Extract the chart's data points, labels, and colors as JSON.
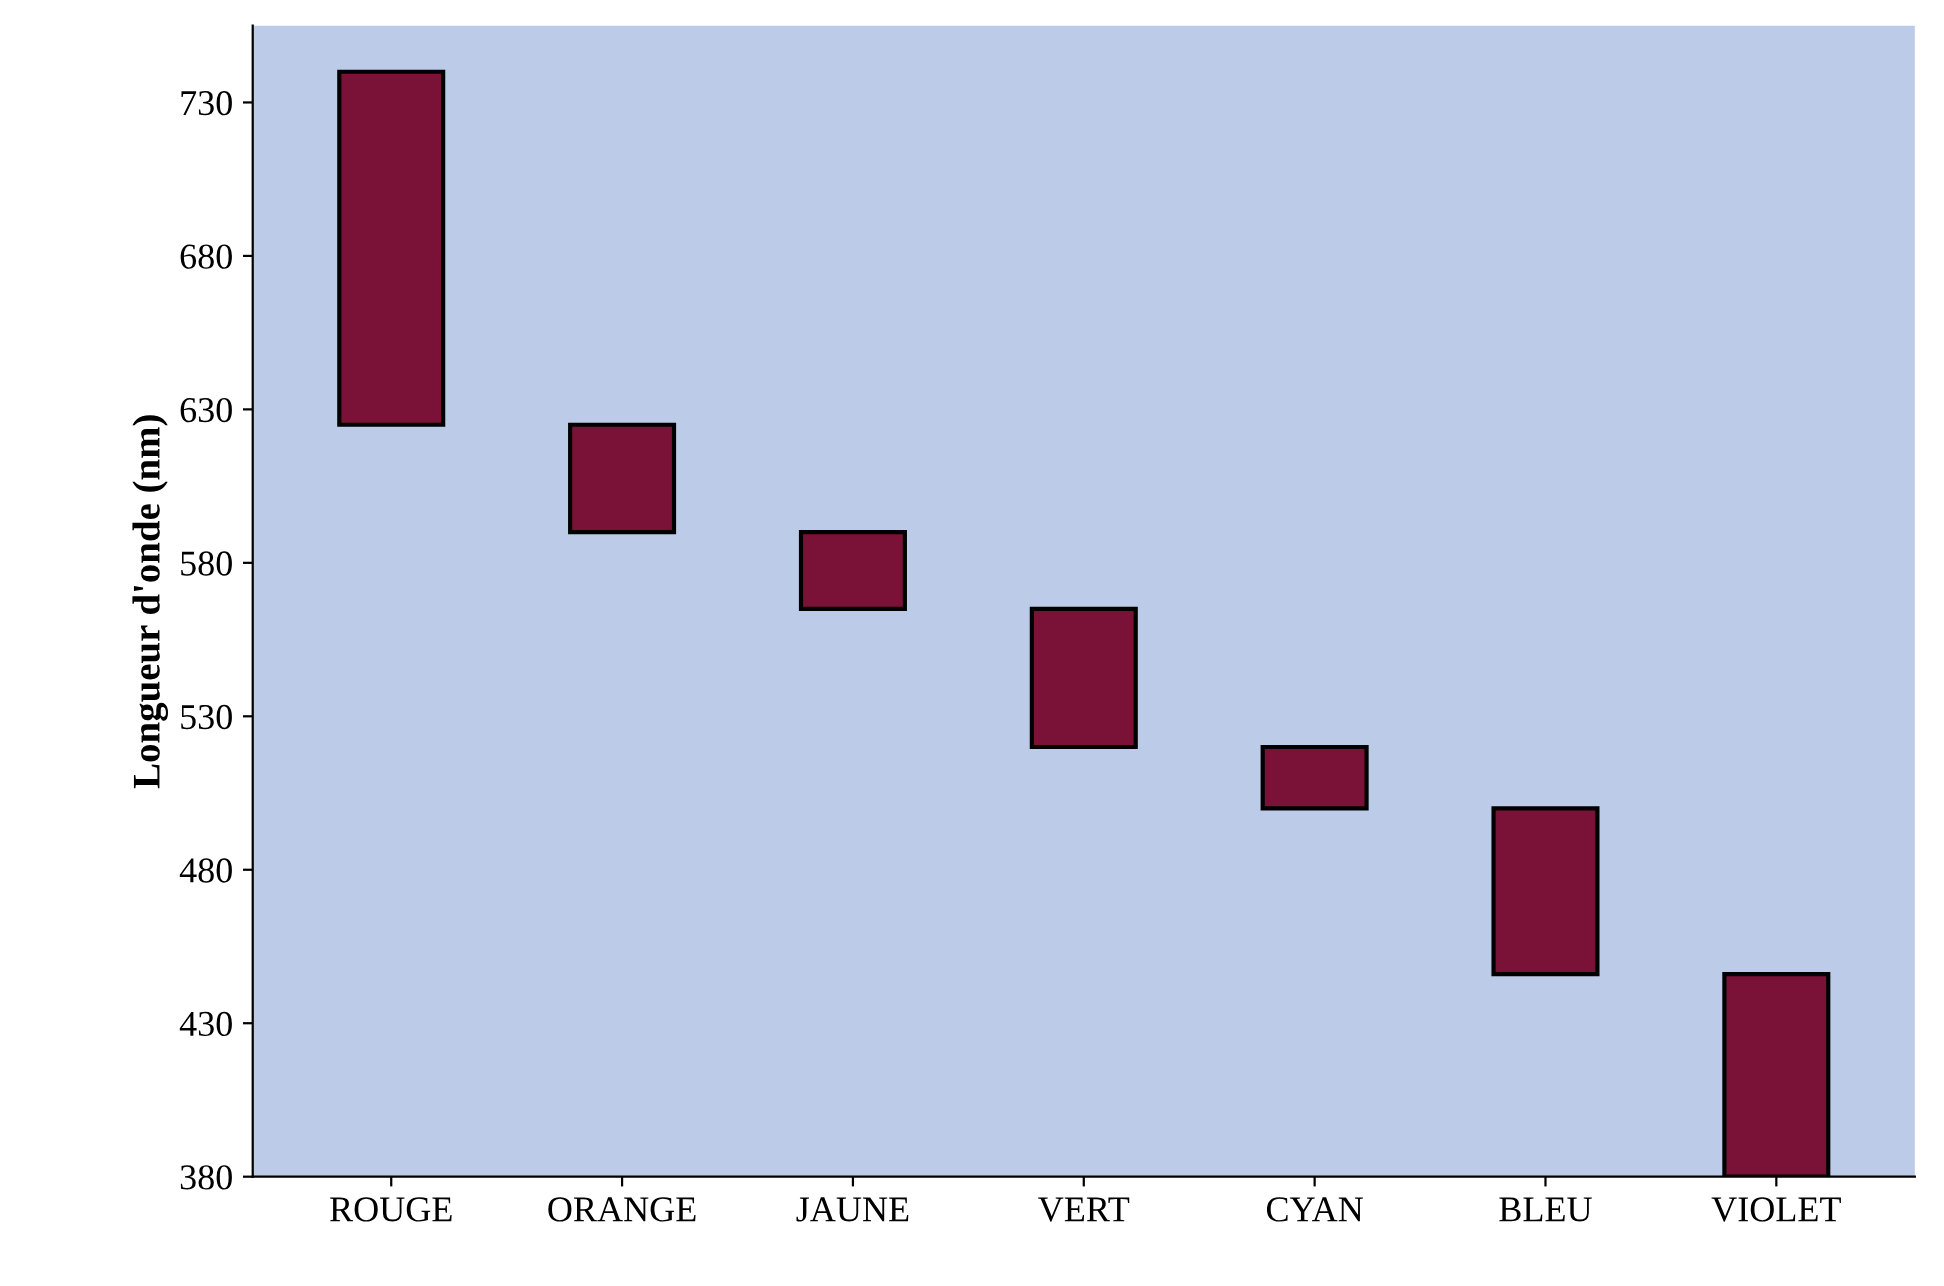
{
  "chart_data": {
    "type": "bar",
    "ylabel": "Longueur d'onde (nm)",
    "categories": [
      "ROUGE",
      "ORANGE",
      "JAUNE",
      "VERT",
      "CYAN",
      "BLEU",
      "VIOLET"
    ],
    "base": [
      625,
      590,
      565,
      520,
      500,
      446,
      380
    ],
    "values": [
      115,
      35,
      25,
      45,
      20,
      54,
      66
    ],
    "color": "#7a1238",
    "ylim": [
      380,
      755
    ],
    "yticks": [
      380,
      430,
      480,
      530,
      580,
      630,
      680,
      730
    ],
    "grid": false
  }
}
